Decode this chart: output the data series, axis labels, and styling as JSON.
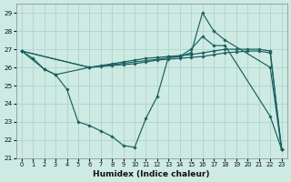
{
  "xlabel": "Humidex (Indice chaleur)",
  "bg_color": "#cdeae3",
  "grid_color": "#aacfc8",
  "line_color": "#1a6060",
  "ylim": [
    21.0,
    29.5
  ],
  "xlim": [
    -0.5,
    23.5
  ],
  "yticks": [
    21,
    22,
    23,
    24,
    25,
    26,
    27,
    28,
    29
  ],
  "xticks": [
    0,
    1,
    2,
    3,
    4,
    5,
    6,
    7,
    8,
    9,
    10,
    11,
    12,
    13,
    14,
    15,
    16,
    17,
    18,
    19,
    20,
    21,
    22,
    23
  ],
  "s1_x": [
    0,
    1,
    2,
    3,
    4,
    5,
    6,
    7,
    8,
    9,
    10,
    11,
    12,
    13,
    14,
    15,
    16,
    17,
    18,
    22,
    23
  ],
  "s1_y": [
    26.9,
    26.5,
    25.9,
    25.6,
    24.8,
    23.0,
    22.8,
    22.5,
    22.2,
    21.7,
    21.6,
    23.2,
    24.4,
    26.6,
    26.6,
    26.8,
    29.0,
    28.0,
    27.5,
    26.0,
    21.5
  ],
  "s2_x": [
    0,
    2,
    3,
    6,
    14,
    15,
    16,
    17,
    18,
    22,
    23
  ],
  "s2_y": [
    26.9,
    25.9,
    25.6,
    26.0,
    26.6,
    27.0,
    27.7,
    27.2,
    27.2,
    23.3,
    21.5
  ],
  "s3_x": [
    0,
    6,
    7,
    8,
    9,
    10,
    11,
    12,
    13,
    14,
    15,
    16,
    17,
    18,
    19,
    20,
    21,
    22,
    23
  ],
  "s3_y": [
    26.9,
    26.0,
    26.1,
    26.2,
    26.3,
    26.4,
    26.5,
    26.55,
    26.6,
    26.65,
    26.7,
    26.8,
    26.9,
    27.0,
    27.0,
    27.0,
    27.0,
    26.9,
    21.5
  ],
  "s4_x": [
    0,
    6,
    7,
    8,
    9,
    10,
    11,
    12,
    13,
    14,
    15,
    16,
    17,
    18,
    19,
    20,
    21,
    22,
    23
  ],
  "s4_y": [
    26.9,
    26.0,
    26.05,
    26.1,
    26.15,
    26.2,
    26.3,
    26.4,
    26.45,
    26.5,
    26.55,
    26.6,
    26.7,
    26.8,
    26.85,
    26.9,
    26.9,
    26.8,
    21.5
  ]
}
